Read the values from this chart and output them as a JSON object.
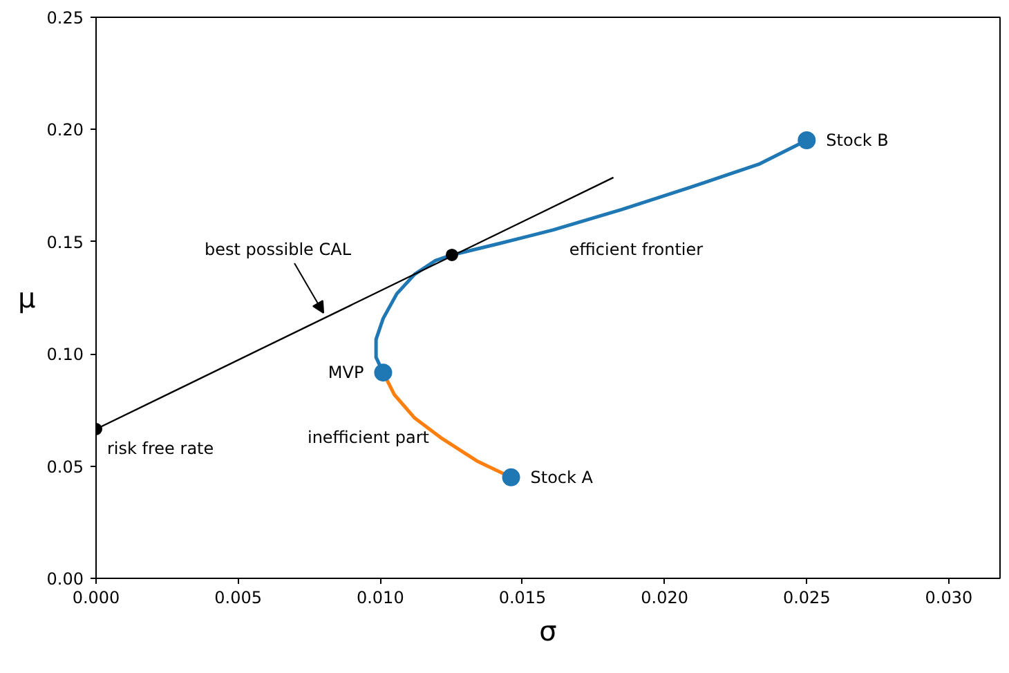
{
  "chart_data": {
    "type": "line",
    "xlabel": "σ",
    "ylabel": "μ",
    "xlim": [
      0,
      0.0318
    ],
    "ylim": [
      0,
      0.25
    ],
    "xticks": [
      {
        "value": 0,
        "label": "0.000"
      },
      {
        "value": 0.005,
        "label": "0.005"
      },
      {
        "value": 0.01,
        "label": "0.010"
      },
      {
        "value": 0.015,
        "label": "0.015"
      },
      {
        "value": 0.02,
        "label": "0.020"
      },
      {
        "value": 0.025,
        "label": "0.025"
      },
      {
        "value": 0.03,
        "label": "0.030"
      }
    ],
    "yticks": [
      {
        "value": 0,
        "label": "0.00"
      },
      {
        "value": 0.05,
        "label": "0.05"
      },
      {
        "value": 0.1,
        "label": "0.10"
      },
      {
        "value": 0.15,
        "label": "0.15"
      },
      {
        "value": 0.2,
        "label": "0.20"
      },
      {
        "value": 0.25,
        "label": "0.25"
      }
    ],
    "grid": false,
    "series": [
      {
        "color": "#1f77b4",
        "x": [
          0.0101,
          0.00985,
          0.00985,
          0.0101,
          0.01058,
          0.01121,
          0.01194,
          0.01252,
          0.01413,
          0.01607,
          0.0185,
          0.02092,
          0.02335,
          0.025
        ],
        "values": [
          0.0917,
          0.0985,
          0.1065,
          0.1158,
          0.1268,
          0.1355,
          0.1416,
          0.1441,
          0.149,
          0.1552,
          0.1644,
          0.1743,
          0.1847,
          0.1952
        ]
      },
      {
        "color": "#ff7f0e",
        "x": [
          0.0101,
          0.01049,
          0.01121,
          0.01218,
          0.0134,
          0.0146
        ],
        "values": [
          0.0917,
          0.0819,
          0.0714,
          0.0622,
          0.0523,
          0.045
        ]
      },
      {
        "color": "#000000",
        "x": [
          0,
          0.0182
        ],
        "values": [
          0.0665,
          0.1786
        ]
      },
      {
        "type": "scatter",
        "color": "#1f77b4",
        "marker": "circle",
        "x": [
          0.0146,
          0.0101,
          0.025
        ],
        "values": [
          0.045,
          0.0917,
          0.1952
        ]
      },
      {
        "type": "scatter",
        "color": "#000000",
        "marker": "circle",
        "x": [
          0,
          0.01252
        ],
        "values": [
          0.0665,
          0.1441
        ]
      }
    ],
    "annotations": [
      {
        "text": "Stock A",
        "x": 0.0146,
        "y": 0.045
      },
      {
        "text": "Stock B",
        "x": 0.025,
        "y": 0.1952
      },
      {
        "text": "MVP",
        "x": 0.0101,
        "y": 0.0917
      },
      {
        "text": "risk free rate",
        "x": 0,
        "y": 0.0665
      },
      {
        "text": "efficient frontier",
        "x": 0.01665,
        "y": 0.157
      },
      {
        "text": "inefficient part",
        "x": 0.0123,
        "y": 0.0628
      },
      {
        "text": "best possible CAL",
        "x": 0.008,
        "y": 0.1158
      }
    ]
  }
}
